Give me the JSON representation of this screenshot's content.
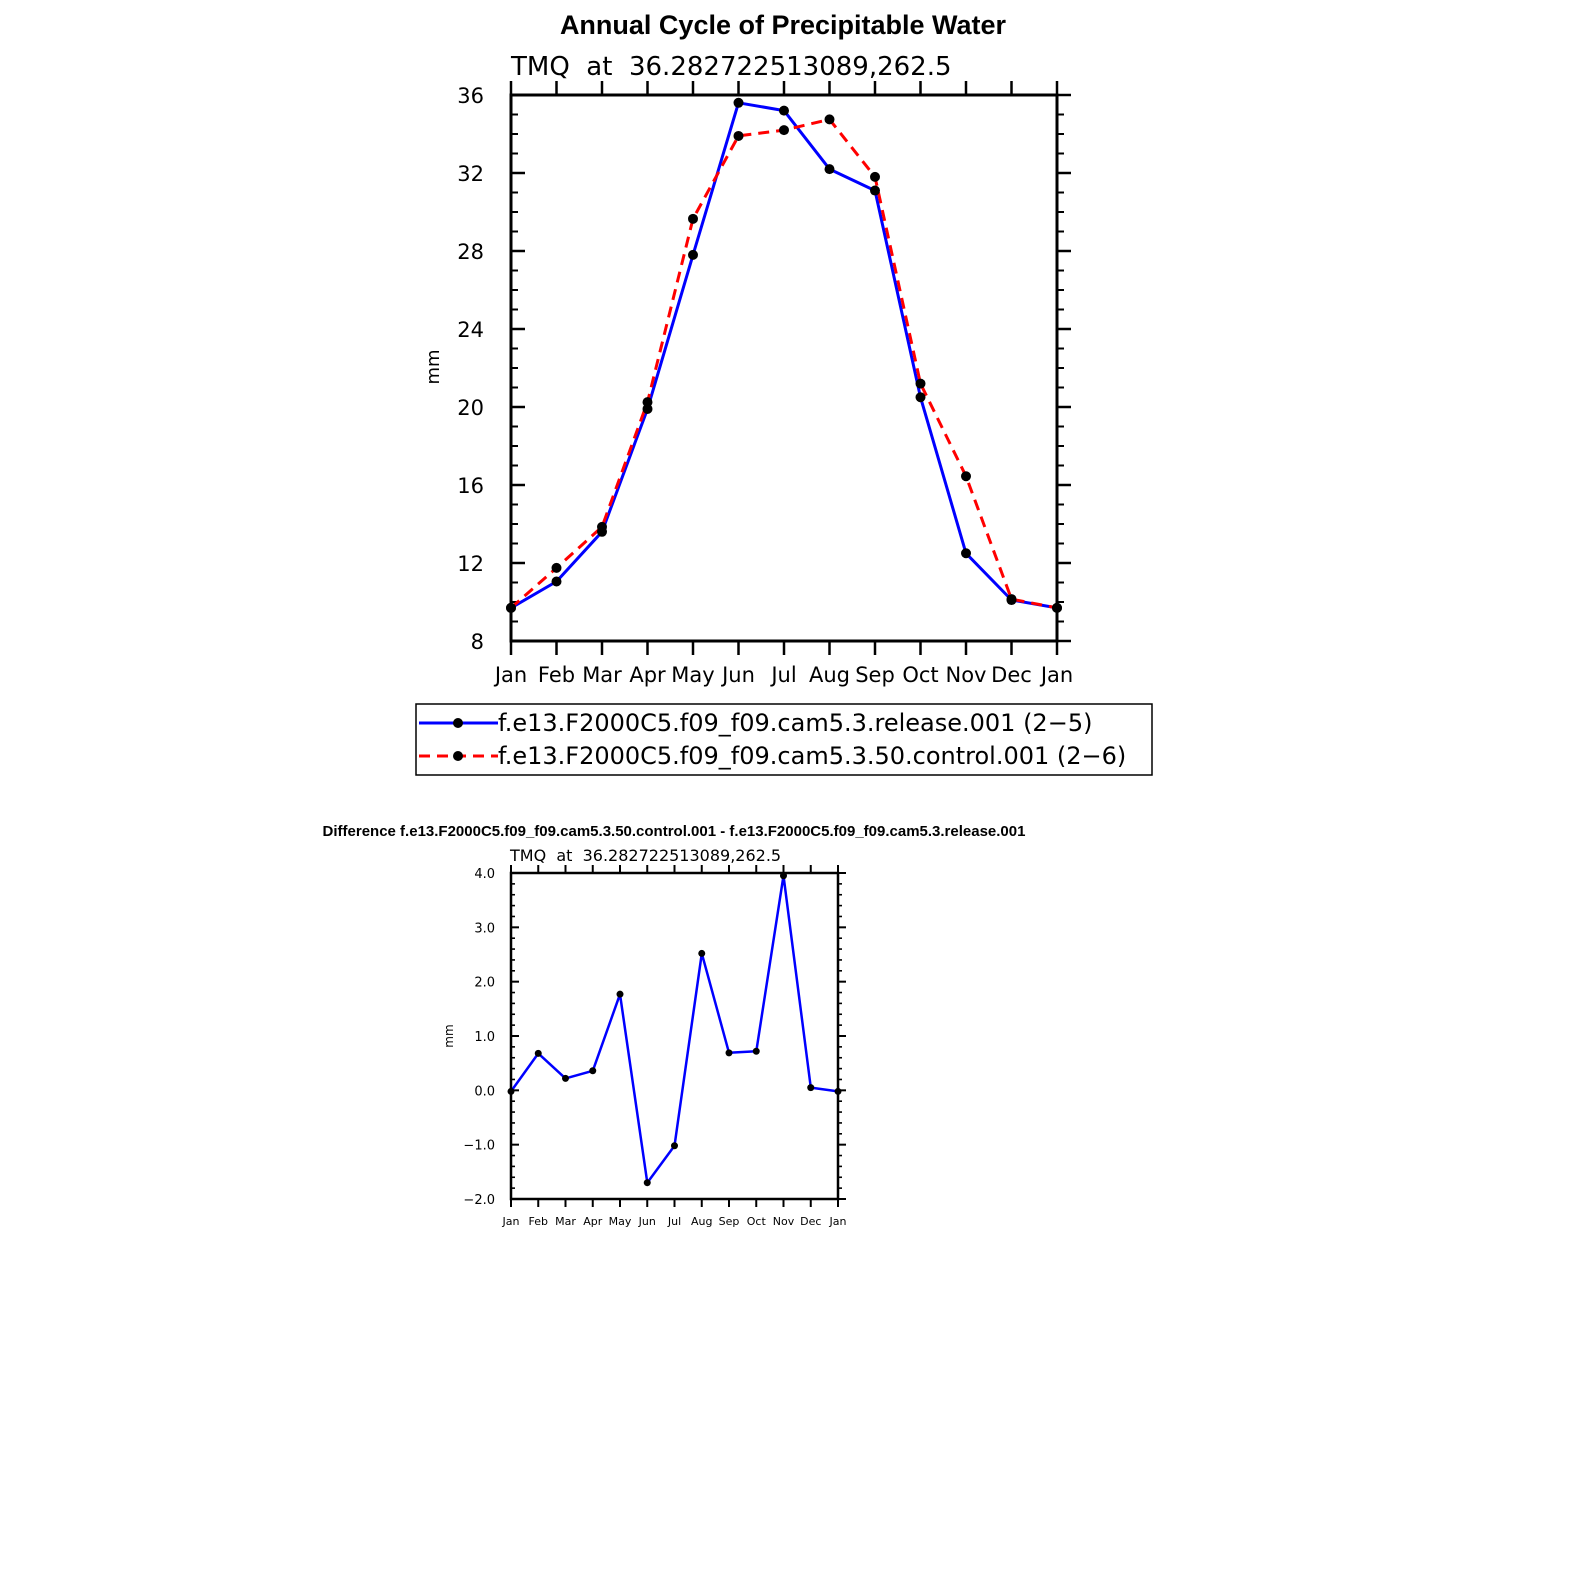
{
  "chart_data": [
    {
      "type": "line",
      "title": "Annual Cycle of Precipitable Water",
      "subtitle": "TMQ  at  36.282722513089,262.5",
      "xlabel": "",
      "ylabel": "mm",
      "categories": [
        "Jan",
        "Feb",
        "Mar",
        "Apr",
        "May",
        "Jun",
        "Jul",
        "Aug",
        "Sep",
        "Oct",
        "Nov",
        "Dec",
        "Jan"
      ],
      "ylim": [
        8,
        36
      ],
      "yticks": [
        "8",
        "12",
        "16",
        "20",
        "24",
        "28",
        "32",
        "36"
      ],
      "grid": false,
      "legend_position": "bottom",
      "series": [
        {
          "name": "f.e13.F2000C5.f09_f09.cam5.3.release.001 (2−5)",
          "color": "#0000ff",
          "dash": "solid",
          "values": [
            9.7,
            11.05,
            13.6,
            19.9,
            27.8,
            35.6,
            35.2,
            32.2,
            31.1,
            20.5,
            12.5,
            10.1,
            9.7
          ]
        },
        {
          "name": "f.e13.F2000C5.f09_f09.cam5.3.50.control.001 (2−6)",
          "color": "#ff0000",
          "dash": "dashed",
          "values": [
            9.7,
            11.75,
            13.85,
            20.25,
            29.65,
            33.9,
            34.2,
            34.75,
            31.8,
            21.2,
            16.45,
            10.15,
            9.7
          ]
        }
      ]
    },
    {
      "type": "line",
      "title": "Difference f.e13.F2000C5.f09_f09.cam5.3.50.control.001 - f.e13.F2000C5.f09_f09.cam5.3.release.001",
      "subtitle": "TMQ  at  36.282722513089,262.5",
      "xlabel": "",
      "ylabel": "mm",
      "categories": [
        "Jan",
        "Feb",
        "Mar",
        "Apr",
        "May",
        "Jun",
        "Jul",
        "Aug",
        "Sep",
        "Oct",
        "Nov",
        "Dec",
        "Jan"
      ],
      "ylim": [
        -2.0,
        4.0
      ],
      "yticks": [
        "−2.0",
        "−1.0",
        "0.0",
        "1.0",
        "2.0",
        "3.0",
        "4.0"
      ],
      "grid": false,
      "series": [
        {
          "color": "#0000ff",
          "dash": "solid",
          "values": [
            -0.02,
            0.68,
            0.22,
            0.36,
            1.77,
            -1.7,
            -1.02,
            2.52,
            0.69,
            0.72,
            3.95,
            0.05,
            -0.02
          ]
        }
      ]
    }
  ]
}
